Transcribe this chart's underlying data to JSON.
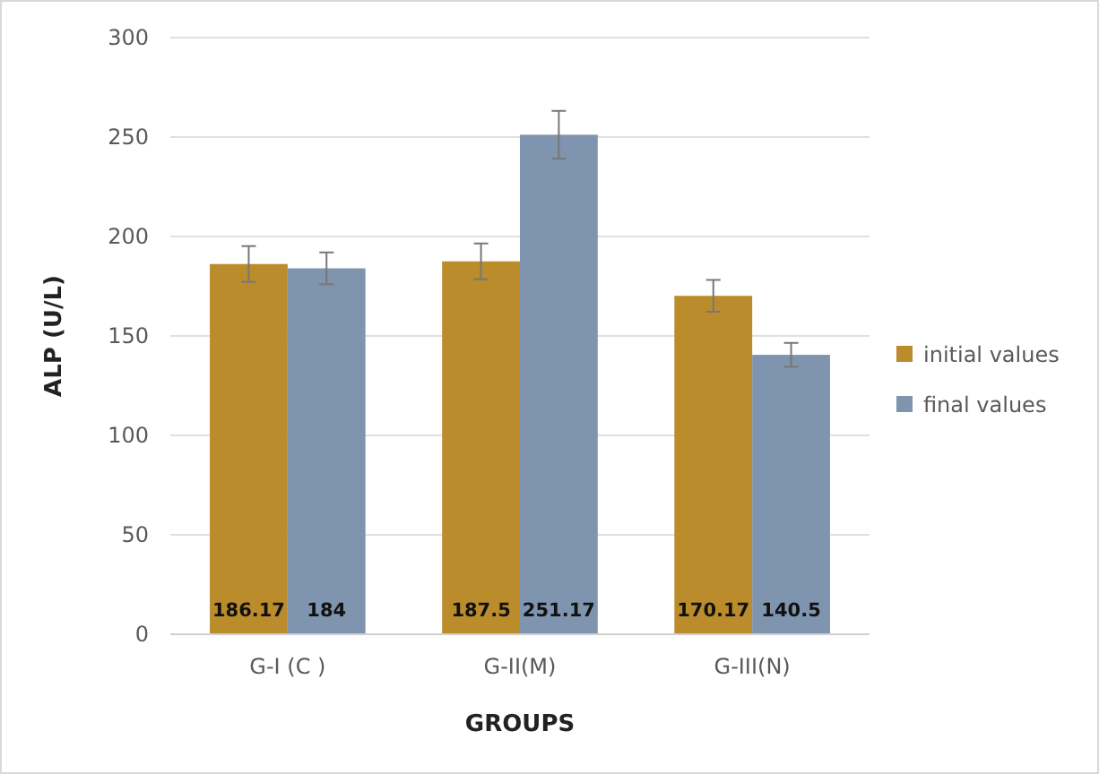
{
  "chart_data": {
    "type": "bar",
    "xlabel": "GROUPS",
    "ylabel": "ALP (U/L)",
    "categories": [
      "G-I (C )",
      "G-II(M)",
      "G-III(N)"
    ],
    "series": [
      {
        "name": "initial values",
        "color": "#bb8c2c",
        "values": [
          186.17,
          187.5,
          170.17
        ],
        "errors": [
          9,
          9,
          8
        ]
      },
      {
        "name": "final values",
        "color": "#7f94ae",
        "values": [
          184,
          251.17,
          140.5
        ],
        "errors": [
          8,
          12,
          6
        ]
      }
    ],
    "ylim": [
      0,
      300
    ],
    "yticks": [
      0,
      50,
      100,
      150,
      200,
      250,
      300
    ],
    "grid": "y",
    "legend": "right",
    "data_labels": true
  }
}
